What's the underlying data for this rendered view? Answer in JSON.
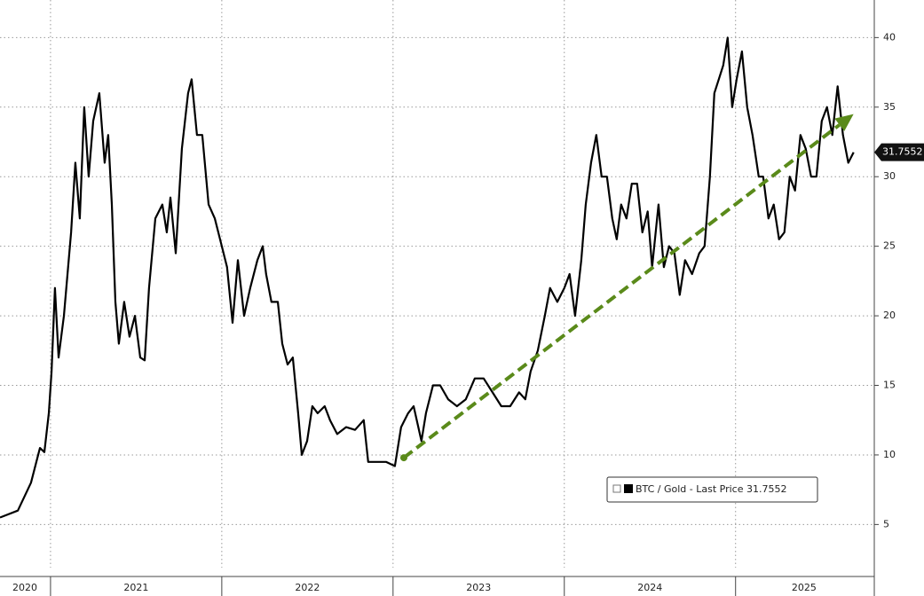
{
  "chart_data": {
    "type": "line",
    "xlim": [
      2020.705,
      2025.81
    ],
    "xticks": [
      {
        "value": 2020.85,
        "label": "2020"
      },
      {
        "value": 2021.5,
        "label": "2021"
      },
      {
        "value": 2022.5,
        "label": "2022"
      },
      {
        "value": 2023.5,
        "label": "2023"
      },
      {
        "value": 2024.5,
        "label": "2024"
      },
      {
        "value": 2025.4,
        "label": "2025"
      }
    ],
    "year_boundaries": [
      2021,
      2022,
      2023,
      2024,
      2025
    ],
    "ylim": [
      1.9,
      42.7
    ],
    "yticks": [
      5,
      10,
      15,
      20,
      25,
      30,
      35,
      40
    ],
    "grid": true,
    "last_value": 31.7552,
    "series": [
      {
        "name": "BTC / Gold - Last Price 31.7552",
        "color": "#000000",
        "x": [
          2020.705,
          2020.809,
          2020.886,
          2020.938,
          2020.964,
          2020.99,
          2021.006,
          2021.026,
          2021.047,
          2021.078,
          2021.12,
          2021.145,
          2021.171,
          2021.197,
          2021.223,
          2021.249,
          2021.285,
          2021.316,
          2021.337,
          2021.358,
          2021.379,
          2021.399,
          2021.43,
          2021.461,
          2021.493,
          2021.524,
          2021.55,
          2021.575,
          2021.612,
          2021.653,
          2021.679,
          2021.7,
          2021.731,
          2021.767,
          2021.803,
          2021.824,
          2021.855,
          2021.886,
          2021.923,
          2021.959,
          2022.0,
          2022.031,
          2022.063,
          2022.094,
          2022.13,
          2022.166,
          2022.208,
          2022.239,
          2022.259,
          2022.29,
          2022.327,
          2022.353,
          2022.384,
          2022.415,
          2022.446,
          2022.467,
          2022.498,
          2022.529,
          2022.56,
          2022.601,
          2022.632,
          2022.674,
          2022.726,
          2022.778,
          2022.829,
          2022.855,
          2022.907,
          2022.959,
          2023.011,
          2023.047,
          2023.088,
          2023.12,
          2023.166,
          2023.192,
          2023.233,
          2023.275,
          2023.322,
          2023.373,
          2023.425,
          2023.477,
          2023.529,
          2023.581,
          2023.632,
          2023.684,
          2023.736,
          2023.772,
          2023.803,
          2023.845,
          2023.886,
          2023.917,
          2023.959,
          2024.0,
          2024.031,
          2024.063,
          2024.099,
          2024.125,
          2024.156,
          2024.187,
          2024.218,
          2024.249,
          2024.28,
          2024.306,
          2024.332,
          2024.363,
          2024.394,
          2024.425,
          2024.456,
          2024.487,
          2024.513,
          2024.55,
          2024.581,
          2024.612,
          2024.643,
          2024.674,
          2024.705,
          2024.746,
          2024.788,
          2024.819,
          2024.85,
          2024.876,
          2024.902,
          2024.928,
          2024.954,
          2024.98,
          2025.006,
          2025.037,
          2025.068,
          2025.099,
          2025.135,
          2025.161,
          2025.192,
          2025.223,
          2025.254,
          2025.285,
          2025.316,
          2025.347,
          2025.379,
          2025.41,
          2025.441,
          2025.472,
          2025.503,
          2025.534,
          2025.565,
          2025.596,
          2025.627,
          2025.658,
          2025.689
        ],
        "values": [
          5.5,
          6,
          8,
          10.5,
          10.2,
          13,
          16,
          22,
          17,
          20,
          26,
          31,
          27,
          35,
          30,
          34,
          36,
          31,
          33,
          28,
          21,
          18,
          21,
          18.5,
          20,
          17,
          16.8,
          22,
          27,
          28,
          26,
          28.5,
          24.5,
          32,
          36,
          37,
          33,
          33,
          28,
          27,
          25,
          23.5,
          19.5,
          24,
          20,
          22,
          24,
          25,
          23,
          21,
          21,
          18,
          16.5,
          17,
          13,
          10,
          11,
          13.5,
          13,
          13.5,
          12.5,
          11.5,
          12,
          11.8,
          12.5,
          9.5,
          9.5,
          9.5,
          9.2,
          12,
          13,
          13.5,
          11,
          13,
          15,
          15,
          14,
          13.5,
          14,
          15.5,
          15.5,
          14.5,
          13.5,
          13.5,
          14.5,
          14,
          16,
          17.5,
          20,
          22,
          21,
          22,
          23,
          20,
          24,
          28,
          31,
          33,
          30,
          30,
          27,
          25.5,
          28,
          27,
          29.5,
          29.5,
          26,
          27.5,
          23.5,
          28,
          23.5,
          25,
          24.5,
          21.5,
          24,
          23,
          24.5,
          25,
          30,
          36,
          37,
          38,
          40,
          35,
          37,
          39,
          35,
          33,
          30,
          30,
          27,
          28,
          25.5,
          26,
          30,
          29,
          33,
          32,
          30,
          30,
          34,
          35,
          33,
          36.5,
          33,
          31,
          31.7552
        ]
      }
    ],
    "trendline": {
      "color": "#5a8a1a",
      "x": [
        2023.063,
        2025.689
      ],
      "values": [
        9.8,
        34.5
      ]
    }
  }
}
